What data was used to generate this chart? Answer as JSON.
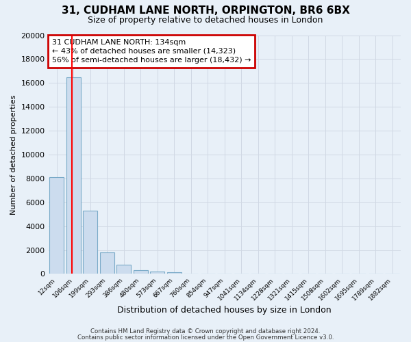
{
  "title": "31, CUDHAM LANE NORTH, ORPINGTON, BR6 6BX",
  "subtitle": "Size of property relative to detached houses in London",
  "xlabel": "Distribution of detached houses by size in London",
  "ylabel": "Number of detached properties",
  "bar_labels": [
    "12sqm",
    "106sqm",
    "199sqm",
    "293sqm",
    "386sqm",
    "480sqm",
    "573sqm",
    "667sqm",
    "760sqm",
    "854sqm",
    "947sqm",
    "1041sqm",
    "1134sqm",
    "1228sqm",
    "1321sqm",
    "1415sqm",
    "1508sqm",
    "1602sqm",
    "1695sqm",
    "1789sqm",
    "1882sqm"
  ],
  "bar_values": [
    8100,
    16500,
    5300,
    1800,
    750,
    300,
    200,
    150,
    0,
    0,
    0,
    0,
    0,
    0,
    0,
    0,
    0,
    0,
    0,
    0,
    0
  ],
  "bar_color": "#ccdcee",
  "bar_edge_color": "#7aaac8",
  "ylim": [
    0,
    20000
  ],
  "yticks": [
    0,
    2000,
    4000,
    6000,
    8000,
    10000,
    12000,
    14000,
    16000,
    18000,
    20000
  ],
  "annotation_text": "31 CUDHAM LANE NORTH: 134sqm\n← 43% of detached houses are smaller (14,323)\n56% of semi-detached houses are larger (18,432) →",
  "annotation_box_color": "#ffffff",
  "annotation_box_edge_color": "#cc0000",
  "footer_line1": "Contains HM Land Registry data © Crown copyright and database right 2024.",
  "footer_line2": "Contains public sector information licensed under the Open Government Licence v3.0.",
  "background_color": "#e8f0f8",
  "plot_bg_color": "#e8f0f8",
  "grid_color": "#d0d8e4"
}
